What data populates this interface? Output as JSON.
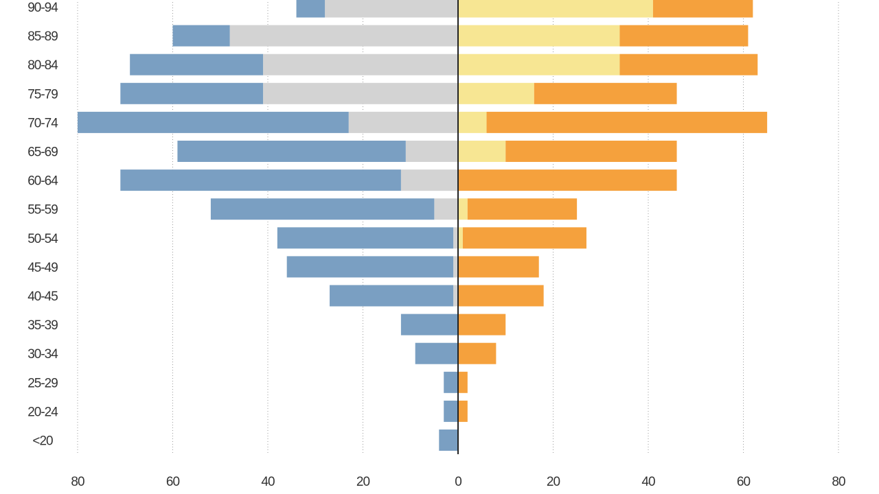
{
  "chart_data": {
    "type": "bar",
    "orientation": "horizontal",
    "layout": "population-pyramid",
    "categories": [
      "90-94",
      "85-89",
      "80-84",
      "75-79",
      "70-74",
      "65-69",
      "60-64",
      "55-59",
      "50-54",
      "45-49",
      "40-45",
      "35-39",
      "30-34",
      "25-29",
      "20-24",
      "<20"
    ],
    "x_ticks": [
      80,
      60,
      40,
      20,
      0,
      20,
      40,
      60,
      80
    ],
    "xlim": [
      -80,
      80
    ],
    "grid": true,
    "left_side": {
      "series": [
        {
          "color": "#d3d3d3",
          "values": [
            28,
            48,
            41,
            41,
            23,
            11,
            12,
            5,
            1,
            1,
            1,
            0,
            0,
            0,
            0,
            0
          ]
        },
        {
          "color": "#7a9fc2",
          "values": [
            6,
            12,
            28,
            30,
            57,
            48,
            59,
            47,
            37,
            35,
            26,
            12,
            9,
            3,
            3,
            4
          ]
        }
      ]
    },
    "right_side": {
      "series": [
        {
          "color": "#f7e693",
          "values": [
            41,
            34,
            34,
            16,
            6,
            10,
            0,
            2,
            1,
            0,
            0,
            0,
            0,
            0,
            0,
            0
          ]
        },
        {
          "color": "#f5a13d",
          "values": [
            21,
            27,
            29,
            30,
            59,
            36,
            46,
            23,
            26,
            17,
            18,
            10,
            8,
            2,
            2,
            0
          ]
        }
      ]
    }
  }
}
